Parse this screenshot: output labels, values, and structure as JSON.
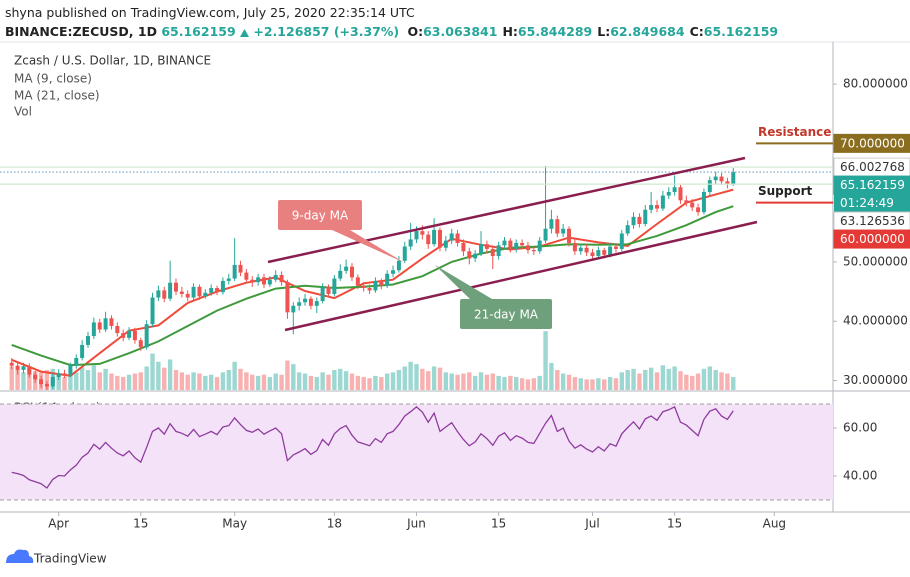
{
  "header": {
    "byline": "shyna published on TradingView.com, July 25, 2020 22:35:14 UTC",
    "symbol": "BINANCE:ZECUSD, 1D",
    "last": "65.162159",
    "change": "+2.126857 (+3.37%)",
    "ohlc": [
      {
        "key": "O:",
        "value": "63.063841"
      },
      {
        "key": "H:",
        "value": "65.844289"
      },
      {
        "key": "L:",
        "value": "62.849684"
      },
      {
        "key": "C:",
        "value": "65.162159"
      }
    ]
  },
  "footer": {
    "brand": "TradingView"
  },
  "chart_data": {
    "type": "candlestick",
    "title": "Zcash / U.S. Dollar, 1D, BINANCE",
    "up_color": "#26a69a",
    "down_color": "#ef5350",
    "xlim": [
      "2020-03-22",
      "2020-08-11"
    ],
    "xticks": [
      {
        "value": "2020-04-01",
        "label": "Apr"
      },
      {
        "value": "2020-04-15",
        "label": "15"
      },
      {
        "value": "2020-05-01",
        "label": "May"
      },
      {
        "value": "2020-05-18",
        "label": "18"
      },
      {
        "value": "2020-06-01",
        "label": "Jun"
      },
      {
        "value": "2020-06-15",
        "label": "15"
      },
      {
        "value": "2020-07-01",
        "label": "Jul"
      },
      {
        "value": "2020-07-15",
        "label": "15"
      },
      {
        "value": "2020-08-01",
        "label": "Aug"
      }
    ],
    "ylim": [
      28.4,
      87.1
    ],
    "yticks": [
      {
        "value": 30,
        "label": "30.000000"
      },
      {
        "value": 40,
        "label": "40.000000"
      },
      {
        "value": 50,
        "label": "50.000000"
      },
      {
        "value": 60,
        "label": "60.000000"
      },
      {
        "value": 70,
        "label": "70.000000"
      },
      {
        "value": 80,
        "label": "80.000000"
      }
    ],
    "grid": false,
    "x": [
      "2020-03-24",
      "2020-03-25",
      "2020-03-26",
      "2020-03-27",
      "2020-03-28",
      "2020-03-29",
      "2020-03-30",
      "2020-03-31",
      "2020-04-01",
      "2020-04-02",
      "2020-04-03",
      "2020-04-04",
      "2020-04-05",
      "2020-04-06",
      "2020-04-07",
      "2020-04-08",
      "2020-04-09",
      "2020-04-10",
      "2020-04-11",
      "2020-04-12",
      "2020-04-13",
      "2020-04-14",
      "2020-04-15",
      "2020-04-16",
      "2020-04-17",
      "2020-04-18",
      "2020-04-19",
      "2020-04-20",
      "2020-04-21",
      "2020-04-22",
      "2020-04-23",
      "2020-04-24",
      "2020-04-25",
      "2020-04-26",
      "2020-04-27",
      "2020-04-28",
      "2020-04-29",
      "2020-04-30",
      "2020-05-01",
      "2020-05-02",
      "2020-05-03",
      "2020-05-04",
      "2020-05-05",
      "2020-05-06",
      "2020-05-07",
      "2020-05-08",
      "2020-05-09",
      "2020-05-10",
      "2020-05-11",
      "2020-05-12",
      "2020-05-13",
      "2020-05-14",
      "2020-05-15",
      "2020-05-16",
      "2020-05-17",
      "2020-05-18",
      "2020-05-19",
      "2020-05-20",
      "2020-05-21",
      "2020-05-22",
      "2020-05-23",
      "2020-05-24",
      "2020-05-25",
      "2020-05-26",
      "2020-05-27",
      "2020-05-28",
      "2020-05-29",
      "2020-05-30",
      "2020-05-31",
      "2020-06-01",
      "2020-06-02",
      "2020-06-03",
      "2020-06-04",
      "2020-06-05",
      "2020-06-06",
      "2020-06-07",
      "2020-06-08",
      "2020-06-09",
      "2020-06-10",
      "2020-06-11",
      "2020-06-12",
      "2020-06-13",
      "2020-06-14",
      "2020-06-15",
      "2020-06-16",
      "2020-06-17",
      "2020-06-18",
      "2020-06-19",
      "2020-06-20",
      "2020-06-21",
      "2020-06-22",
      "2020-06-23",
      "2020-06-24",
      "2020-06-25",
      "2020-06-26",
      "2020-06-27",
      "2020-06-28",
      "2020-06-29",
      "2020-06-30",
      "2020-07-01",
      "2020-07-02",
      "2020-07-03",
      "2020-07-04",
      "2020-07-05",
      "2020-07-06",
      "2020-07-07",
      "2020-07-08",
      "2020-07-09",
      "2020-07-10",
      "2020-07-11",
      "2020-07-12",
      "2020-07-13",
      "2020-07-14",
      "2020-07-15",
      "2020-07-16",
      "2020-07-17",
      "2020-07-18",
      "2020-07-19",
      "2020-07-20",
      "2020-07-21",
      "2020-07-22",
      "2020-07-23",
      "2020-07-24",
      "2020-07-25"
    ],
    "open": [
      33.0,
      32.5,
      31.8,
      32.4,
      31.0,
      30.2,
      29.4,
      29.0,
      30.6,
      31.2,
      31.0,
      32.5,
      33.8,
      36.0,
      37.5,
      39.8,
      38.6,
      40.5,
      39.2,
      38.0,
      37.2,
      38.4,
      36.8,
      35.6,
      39.5,
      44.0,
      45.2,
      43.8,
      46.5,
      45.0,
      44.6,
      44.0,
      45.8,
      44.2,
      44.8,
      45.6,
      44.9,
      46.8,
      47.2,
      49.5,
      48.2,
      47.0,
      46.6,
      47.4,
      46.2,
      47.0,
      47.8,
      46.6,
      41.5,
      42.6,
      43.2,
      43.8,
      42.6,
      43.4,
      45.8,
      44.6,
      47.2,
      48.5,
      49.2,
      47.4,
      46.0,
      45.6,
      45.2,
      46.8,
      46.0,
      48.0,
      48.6,
      50.2,
      52.6,
      53.8,
      55.2,
      54.6,
      53.0,
      55.4,
      52.4,
      53.6,
      54.8,
      53.2,
      51.8,
      50.6,
      51.4,
      53.0,
      52.2,
      51.0,
      52.8,
      53.6,
      52.2,
      53.2,
      52.8,
      52.0,
      51.8,
      53.6,
      55.6,
      57.2,
      54.8,
      55.6,
      53.2,
      51.8,
      52.4,
      51.6,
      51.0,
      52.0,
      51.2,
      52.6,
      52.2,
      54.8,
      56.2,
      57.6,
      56.4,
      58.8,
      59.6,
      59.0,
      61.2,
      61.8,
      62.6,
      60.4,
      60.0,
      59.2,
      58.4,
      61.8,
      63.8,
      64.4,
      63.6,
      63.063841
    ],
    "high": [
      33.8,
      33.1,
      33.0,
      32.9,
      31.6,
      30.8,
      29.9,
      31.2,
      31.9,
      31.8,
      33.0,
      34.4,
      36.8,
      38.2,
      40.6,
      40.4,
      41.6,
      41.0,
      39.8,
      38.6,
      39.0,
      38.9,
      37.2,
      40.2,
      44.8,
      46.0,
      45.8,
      50.2,
      47.2,
      45.8,
      45.2,
      46.4,
      46.2,
      45.4,
      46.2,
      46.0,
      47.4,
      48.0,
      54.0,
      50.2,
      48.8,
      47.6,
      48.0,
      48.0,
      47.6,
      48.6,
      48.4,
      47.0,
      43.2,
      44.0,
      44.6,
      44.2,
      44.0,
      46.4,
      46.2,
      47.8,
      49.6,
      50.4,
      49.8,
      47.9,
      46.6,
      46.2,
      47.4,
      47.2,
      48.6,
      49.4,
      51.0,
      53.4,
      56.6,
      56.0,
      56.2,
      55.2,
      57.4,
      55.8,
      54.4,
      55.6,
      55.4,
      53.8,
      52.4,
      52.0,
      55.2,
      53.6,
      52.8,
      53.4,
      54.2,
      54.0,
      53.8,
      53.8,
      53.4,
      52.6,
      54.2,
      66.2,
      58.8,
      57.8,
      56.4,
      56.0,
      53.8,
      53.0,
      53.0,
      52.2,
      52.6,
      52.4,
      53.2,
      53.2,
      55.4,
      57.0,
      58.4,
      58.2,
      59.6,
      61.8,
      60.4,
      62.0,
      62.6,
      64.6,
      63.0,
      61.2,
      60.6,
      59.8,
      62.4,
      64.4,
      65.2,
      65.0,
      64.2,
      65.844289
    ],
    "low": [
      31.9,
      31.0,
      31.2,
      30.5,
      29.6,
      28.8,
      28.2,
      28.6,
      30.1,
      30.4,
      30.6,
      32.0,
      33.4,
      35.5,
      37.0,
      38.0,
      38.2,
      38.6,
      37.4,
      36.6,
      36.8,
      36.2,
      35.0,
      35.2,
      39.0,
      43.4,
      43.2,
      43.4,
      44.4,
      44.0,
      43.4,
      43.6,
      43.6,
      43.8,
      44.3,
      44.4,
      44.5,
      46.2,
      46.8,
      47.6,
      46.4,
      45.8,
      46.0,
      45.6,
      45.8,
      46.6,
      46.0,
      40.4,
      37.8,
      41.8,
      42.6,
      42.0,
      41.4,
      43.0,
      44.0,
      44.2,
      46.8,
      48.0,
      46.8,
      45.4,
      45.0,
      44.6,
      44.8,
      45.4,
      45.6,
      47.4,
      48.2,
      49.8,
      52.0,
      53.2,
      53.8,
      52.2,
      52.6,
      51.8,
      51.8,
      53.0,
      52.6,
      51.0,
      49.6,
      50.0,
      51.0,
      51.4,
      48.8,
      50.4,
      52.2,
      51.6,
      51.6,
      52.2,
      51.4,
      51.2,
      51.4,
      53.2,
      54.8,
      54.2,
      54.2,
      52.6,
      51.2,
      51.2,
      51.0,
      50.4,
      50.6,
      50.6,
      50.8,
      51.6,
      51.8,
      54.4,
      55.6,
      55.8,
      56.0,
      58.2,
      58.4,
      58.6,
      60.6,
      61.2,
      59.8,
      59.4,
      58.6,
      57.8,
      58.0,
      61.2,
      63.2,
      63.0,
      62.4,
      62.849684
    ],
    "close": [
      32.5,
      31.8,
      32.4,
      31.0,
      30.2,
      29.4,
      29.0,
      30.6,
      31.2,
      31.0,
      32.5,
      33.8,
      36.0,
      37.5,
      39.8,
      38.6,
      40.5,
      39.2,
      38.0,
      37.2,
      38.4,
      36.8,
      35.6,
      39.5,
      44.0,
      45.2,
      43.8,
      46.5,
      45.0,
      44.6,
      44.0,
      45.8,
      44.2,
      44.8,
      45.6,
      44.9,
      46.8,
      47.2,
      49.5,
      48.2,
      47.0,
      46.6,
      47.4,
      46.2,
      47.0,
      47.8,
      46.6,
      41.5,
      42.6,
      43.2,
      43.8,
      42.6,
      43.4,
      45.8,
      44.6,
      47.2,
      48.5,
      49.2,
      47.4,
      46.0,
      45.6,
      45.2,
      46.8,
      46.0,
      48.0,
      48.6,
      50.2,
      52.6,
      53.8,
      55.2,
      54.6,
      53.0,
      55.4,
      52.4,
      53.6,
      54.8,
      53.2,
      51.8,
      50.6,
      51.4,
      53.0,
      52.2,
      51.0,
      52.8,
      53.6,
      52.2,
      53.2,
      52.8,
      52.0,
      51.8,
      53.6,
      55.6,
      57.2,
      54.8,
      55.6,
      53.2,
      51.8,
      52.4,
      51.6,
      51.0,
      52.0,
      51.2,
      52.6,
      52.2,
      54.8,
      56.2,
      57.6,
      56.4,
      58.8,
      59.6,
      59.0,
      61.2,
      61.8,
      62.6,
      60.4,
      60.0,
      59.2,
      58.4,
      61.8,
      63.8,
      64.4,
      63.6,
      63.063841,
      65.162159
    ],
    "volume": {
      "name": "Vol",
      "vlim": [
        0,
        170
      ],
      "values": [
        40,
        35,
        30,
        38,
        32,
        30,
        34,
        36,
        28,
        22,
        26,
        30,
        38,
        34,
        42,
        30,
        36,
        28,
        24,
        22,
        26,
        28,
        30,
        40,
        62,
        48,
        38,
        52,
        34,
        30,
        26,
        30,
        28,
        24,
        26,
        22,
        30,
        34,
        48,
        36,
        30,
        26,
        24,
        26,
        22,
        28,
        26,
        50,
        44,
        30,
        28,
        24,
        22,
        30,
        26,
        34,
        36,
        32,
        28,
        24,
        22,
        20,
        24,
        22,
        28,
        30,
        34,
        40,
        48,
        44,
        36,
        32,
        40,
        38,
        30,
        28,
        26,
        28,
        30,
        24,
        30,
        26,
        28,
        24,
        22,
        24,
        22,
        20,
        18,
        20,
        24,
        100,
        46,
        34,
        28,
        26,
        22,
        20,
        18,
        18,
        20,
        18,
        22,
        20,
        30,
        34,
        36,
        28,
        34,
        38,
        30,
        42,
        36,
        40,
        32,
        26,
        24,
        28,
        36,
        40,
        34,
        30,
        28,
        22
      ]
    },
    "series": [
      {
        "name": "MA (9, close)",
        "color": "#ef4b3a",
        "x": [
          "2020-03-24",
          "2020-03-29",
          "2020-04-03",
          "2020-04-08",
          "2020-04-13",
          "2020-04-18",
          "2020-04-23",
          "2020-04-28",
          "2020-05-03",
          "2020-05-08",
          "2020-05-13",
          "2020-05-18",
          "2020-05-23",
          "2020-05-28",
          "2020-06-02",
          "2020-06-07",
          "2020-06-12",
          "2020-06-17",
          "2020-06-22",
          "2020-06-27",
          "2020-07-02",
          "2020-07-07",
          "2020-07-12",
          "2020-07-17",
          "2020-07-22",
          "2020-07-25"
        ],
        "values": [
          33.5,
          31.5,
          30.8,
          34.6,
          38.4,
          39.3,
          43.1,
          45.0,
          46.5,
          47.4,
          45.1,
          43.9,
          46.4,
          47.0,
          50.6,
          53.9,
          52.9,
          52.1,
          52.6,
          54.1,
          53.3,
          52.7,
          56.4,
          60.0,
          61.4,
          62.2
        ]
      },
      {
        "name": "MA (21, close)",
        "color": "#3f9a3c",
        "x": [
          "2020-03-24",
          "2020-03-29",
          "2020-04-03",
          "2020-04-08",
          "2020-04-13",
          "2020-04-18",
          "2020-04-23",
          "2020-04-28",
          "2020-05-03",
          "2020-05-08",
          "2020-05-13",
          "2020-05-18",
          "2020-05-23",
          "2020-05-28",
          "2020-06-02",
          "2020-06-07",
          "2020-06-12",
          "2020-06-17",
          "2020-06-22",
          "2020-06-27",
          "2020-07-02",
          "2020-07-07",
          "2020-07-12",
          "2020-07-17",
          "2020-07-22",
          "2020-07-25"
        ],
        "values": [
          36.0,
          34.2,
          32.6,
          32.8,
          34.6,
          36.6,
          39.2,
          41.8,
          43.8,
          45.5,
          46.0,
          45.6,
          45.8,
          46.2,
          47.6,
          50.0,
          51.4,
          52.4,
          52.6,
          53.0,
          52.9,
          53.0,
          54.4,
          56.2,
          58.4,
          59.4
        ]
      }
    ],
    "rsi": {
      "name": "RSI (14, close)",
      "color": "#8e3b9e",
      "band_color": "#f4e3f8",
      "ylim": [
        25,
        75
      ],
      "yticks": [
        {
          "value": 40,
          "label": "40.00"
        },
        {
          "value": 60,
          "label": "60.00"
        }
      ],
      "bands": [
        70,
        30
      ],
      "values": [
        41.5,
        41.0,
        40.2,
        38.4,
        37.6,
        36.8,
        35.0,
        38.6,
        40.2,
        40.0,
        42.6,
        44.5,
        47.8,
        49.6,
        53.2,
        51.2,
        54.0,
        51.6,
        49.6,
        48.4,
        50.4,
        47.6,
        45.8,
        52.0,
        58.6,
        60.0,
        57.4,
        61.8,
        58.6,
        57.8,
        56.6,
        59.4,
        56.4,
        57.4,
        58.6,
        57.2,
        60.4,
        61.0,
        64.2,
        61.4,
        59.0,
        58.2,
        59.6,
        57.4,
        58.8,
        60.0,
        57.6,
        46.4,
        48.8,
        50.0,
        51.4,
        49.0,
        50.6,
        55.2,
        52.8,
        57.6,
        59.8,
        61.0,
        57.0,
        54.2,
        53.4,
        52.6,
        55.6,
        54.0,
        57.6,
        58.6,
        61.4,
        65.0,
        66.8,
        68.8,
        66.6,
        62.4,
        66.2,
        58.6,
        60.4,
        62.2,
        58.4,
        55.2,
        52.6,
        54.2,
        57.6,
        55.6,
        52.8,
        56.6,
        58.0,
        54.8,
        56.8,
        55.8,
        54.0,
        53.6,
        57.8,
        62.0,
        65.2,
        58.6,
        60.0,
        54.6,
        51.6,
        53.0,
        51.2,
        50.0,
        52.2,
        50.4,
        53.4,
        52.4,
        57.6,
        60.2,
        62.6,
        59.6,
        63.8,
        65.0,
        63.2,
        66.8,
        67.6,
        68.8,
        62.4,
        61.2,
        59.0,
        56.8,
        63.6,
        67.0,
        68.0,
        65.0,
        63.6,
        67.2
      ]
    },
    "annotations": [
      {
        "text": "9-day MA",
        "color": "#e88080"
      },
      {
        "text": "21-day MA",
        "color": "#6fa07c"
      }
    ],
    "channel_color": "#8a1f4f",
    "price_tags": [
      {
        "value": 70,
        "label": "70.000000",
        "bg": "#8b6d1f",
        "fg": "#ffffff",
        "name": "Resistance",
        "name_color": "#c0392b"
      },
      {
        "value": 66.002768,
        "label": "66.002768",
        "bg": "#ffffff",
        "fg": "#333333",
        "line": "#cfe8cf",
        "line_style": "solid"
      },
      {
        "value": 65.162159,
        "label": "65.162159",
        "countdown": "01:24:49",
        "bg": "#26a69a",
        "fg": "#ffffff",
        "line": "#6f9fc4",
        "line_style": "dotted"
      },
      {
        "value": 63.126536,
        "label": "63.126536",
        "bg": "#ffffff",
        "fg": "#333333",
        "line": "#cfe8cf",
        "line_style": "solid"
      },
      {
        "value": 60,
        "label": "60.000000",
        "bg": "#e53935",
        "fg": "#ffffff",
        "name": "Support",
        "name_color": "#222222"
      }
    ]
  }
}
